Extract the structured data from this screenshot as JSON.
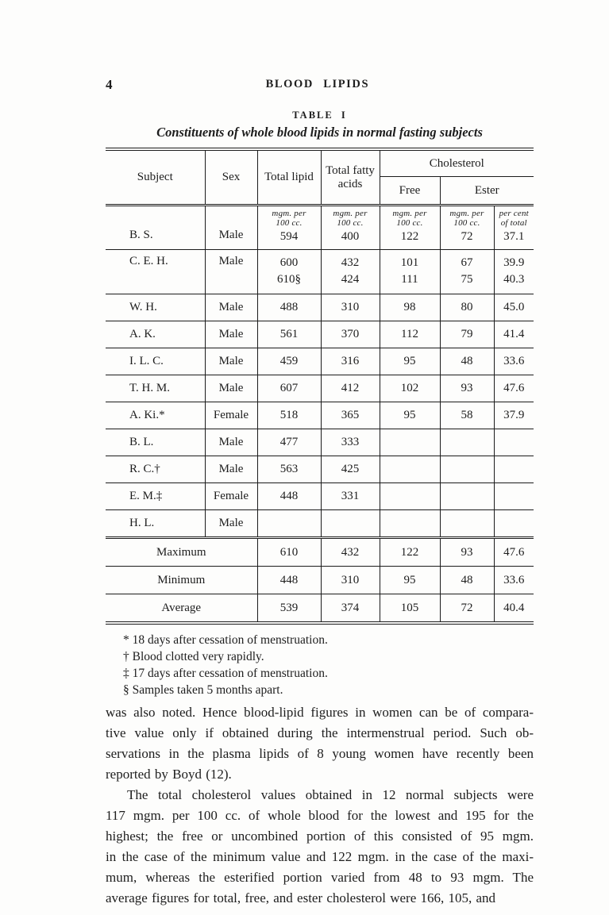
{
  "page": {
    "number": "4",
    "running_head": "BLOOD LIPIDS"
  },
  "table": {
    "title": "TABLE I",
    "caption": "Constituents of whole blood lipids in normal fasting subjects",
    "columns": {
      "subject": "Subject",
      "sex": "Sex",
      "total_lipid": "Total lipid",
      "total_fatty_acids": "Total fatty acids",
      "cholesterol": "Cholesterol",
      "free": "Free",
      "ester": "Ester"
    },
    "units": {
      "mgm": [
        "mgm. per",
        "100 cc."
      ],
      "pct": [
        "per cent",
        "of total"
      ]
    },
    "rows": [
      {
        "subject": "B. S.",
        "sex": "Male",
        "cols": [
          [
            "594"
          ],
          [
            "400"
          ],
          [
            "122"
          ],
          [
            "72"
          ],
          [
            "37.1"
          ]
        ]
      },
      {
        "subject": "C. E. H.",
        "sex": "Male",
        "cols": [
          [
            "600",
            "610§"
          ],
          [
            "432",
            "424"
          ],
          [
            "101",
            "111"
          ],
          [
            "67",
            "75"
          ],
          [
            "39.9",
            "40.3"
          ]
        ]
      },
      {
        "subject": "W. H.",
        "sex": "Male",
        "cols": [
          [
            "488"
          ],
          [
            "310"
          ],
          [
            "98"
          ],
          [
            "80"
          ],
          [
            "45.0"
          ]
        ]
      },
      {
        "subject": "A. K.",
        "sex": "Male",
        "cols": [
          [
            "561"
          ],
          [
            "370"
          ],
          [
            "112"
          ],
          [
            "79"
          ],
          [
            "41.4"
          ]
        ]
      },
      {
        "subject": "I. L. C.",
        "sex": "Male",
        "cols": [
          [
            "459"
          ],
          [
            "316"
          ],
          [
            "95"
          ],
          [
            "48"
          ],
          [
            "33.6"
          ]
        ]
      },
      {
        "subject": "T. H. M.",
        "sex": "Male",
        "cols": [
          [
            "607"
          ],
          [
            "412"
          ],
          [
            "102"
          ],
          [
            "93"
          ],
          [
            "47.6"
          ]
        ]
      },
      {
        "subject": "A. Ki.*",
        "sex": "Female",
        "cols": [
          [
            "518"
          ],
          [
            "365"
          ],
          [
            "95"
          ],
          [
            "58"
          ],
          [
            "37.9"
          ]
        ]
      },
      {
        "subject": "B. L.",
        "sex": "Male",
        "cols": [
          [
            "477"
          ],
          [
            "333"
          ],
          [],
          [],
          []
        ]
      },
      {
        "subject": "R. C.†",
        "sex": "Male",
        "cols": [
          [
            "563"
          ],
          [
            "425"
          ],
          [],
          [],
          []
        ]
      },
      {
        "subject": "E. M.‡",
        "sex": "Female",
        "cols": [
          [
            "448"
          ],
          [
            "331"
          ],
          [],
          [],
          []
        ]
      },
      {
        "subject": "H. L.",
        "sex": "Male",
        "cols": [
          [],
          [],
          [],
          [],
          []
        ]
      }
    ],
    "summary": [
      {
        "label": "Maximum",
        "values": [
          "610",
          "432",
          "122",
          "93",
          "47.6"
        ]
      },
      {
        "label": "Minimum",
        "values": [
          "448",
          "310",
          "95",
          "48",
          "33.6"
        ]
      },
      {
        "label": "Average",
        "values": [
          "539",
          "374",
          "105",
          "72",
          "40.4"
        ]
      }
    ]
  },
  "footnotes": [
    "* 18 days after cessation of menstruation.",
    "† Blood clotted very rapidly.",
    "‡ 17 days after cessation of menstruation.",
    "§ Samples taken 5 months apart."
  ],
  "paragraphs": [
    {
      "indent": false,
      "lines": [
        "was also noted. Hence blood-lipid figures in women can be of compara-",
        "tive value only if obtained during the intermenstrual period. Such ob-",
        "servations in the plasma lipids of 8 young women have recently been",
        "reported by Boyd (12)."
      ]
    },
    {
      "indent": true,
      "lines": [
        "The total cholesterol values obtained in 12 normal subjects were",
        "117 mgm. per 100 cc. of whole blood for the lowest and 195 for the",
        "highest; the free or uncombined portion of this consisted of 95 mgm.",
        "in the case of the minimum value and 122 mgm. in the case of the maxi-",
        "mum, whereas the esterified portion varied from 48 to 93 mgm. The",
        "average figures for total, free, and ester cholesterol were 166, 105, and"
      ]
    }
  ],
  "colors": {
    "paper": "#fdfdfc",
    "ink": "#1d1d1d"
  }
}
